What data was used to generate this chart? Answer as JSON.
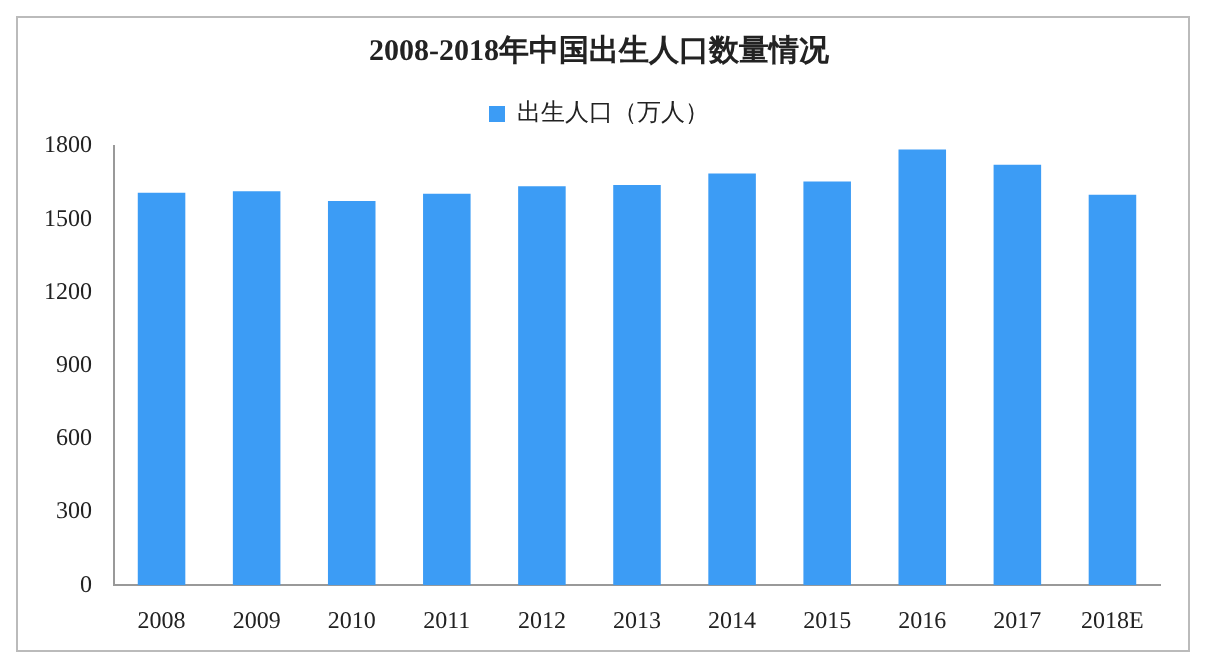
{
  "chart_data": {
    "type": "bar",
    "title": "2008-2018年中国出生人口数量情况",
    "categories": [
      "2008",
      "2009",
      "2010",
      "2011",
      "2012",
      "2013",
      "2014",
      "2015",
      "2016",
      "2017",
      "2018E"
    ],
    "series": [
      {
        "name": "出生人口（万人）",
        "color": "#3c9cf5",
        "values": [
          1608,
          1615,
          1575,
          1604,
          1635,
          1640,
          1687,
          1655,
          1786,
          1723,
          1600
        ]
      }
    ],
    "ylim": [
      0,
      1800
    ],
    "yticks": [
      0,
      300,
      600,
      900,
      1200,
      1500,
      1800
    ],
    "grid": false,
    "legend": "top"
  }
}
